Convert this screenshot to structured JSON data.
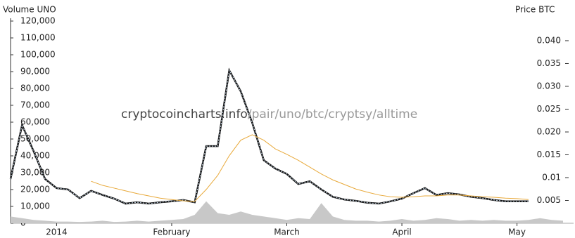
{
  "chart_data": {
    "type": "line",
    "y_label": "Volume UNO",
    "y2_label": "Price BTC",
    "watermark_site": "cryptocoincharts.info",
    "watermark_path": "/pair/uno/btc/cryptsy/alltime",
    "categories": [
      null,
      null,
      null,
      null,
      "2014",
      null,
      null,
      null,
      null,
      null,
      null,
      null,
      null,
      null,
      "February",
      null,
      null,
      null,
      null,
      null,
      null,
      null,
      null,
      null,
      "March",
      null,
      null,
      null,
      null,
      null,
      null,
      null,
      null,
      null,
      "April",
      null,
      null,
      null,
      null,
      null,
      null,
      null,
      null,
      null,
      "May",
      null,
      null,
      null,
      null
    ],
    "ylim": [
      0,
      120000
    ],
    "yticks": [
      0,
      {
        "value": 10000,
        "label": "10,000"
      },
      {
        "value": 20000,
        "label": "20,000"
      },
      {
        "value": 30000,
        "label": "30,000"
      },
      {
        "value": 40000,
        "label": "40,000"
      },
      {
        "value": 50000,
        "label": "50,000"
      },
      {
        "value": 60000,
        "label": "60,000"
      },
      {
        "value": 70000,
        "label": "70,000"
      },
      {
        "value": 80000,
        "label": "80,000"
      },
      {
        "value": 90000,
        "label": "90,000"
      },
      {
        "value": 100000,
        "label": "100,000"
      },
      {
        "value": 110000,
        "label": "110,000"
      },
      {
        "value": 120000,
        "label": "120,000"
      }
    ],
    "y2lim": [
      0,
      0.0443
    ],
    "y2ticks": [
      0.005,
      0.01,
      {
        "value": 0.015,
        "label": "0.015"
      },
      {
        "value": 0.02,
        "label": "0.020"
      },
      {
        "value": 0.025,
        "label": "0.025"
      },
      {
        "value": 0.03,
        "label": "0.030"
      },
      {
        "value": 0.035,
        "label": "0.035"
      },
      {
        "value": 0.04,
        "label": "0.040"
      }
    ],
    "series": [
      {
        "name": "Volume UNO",
        "kind": "area",
        "color": "#c8c8c8",
        "values": [
          4000,
          3000,
          2000,
          1500,
          1000,
          1000,
          800,
          1000,
          1500,
          800,
          1000,
          1500,
          1000,
          1500,
          2000,
          2500,
          5000,
          13000,
          6000,
          5000,
          7000,
          5000,
          4000,
          3000,
          2000,
          3000,
          2500,
          12000,
          4000,
          2000,
          1500,
          1500,
          1000,
          1500,
          2500,
          1500,
          2000,
          3000,
          2500,
          1500,
          2000,
          1500,
          2000,
          1500,
          1500,
          2000,
          3000,
          2000,
          1500
        ]
      },
      {
        "name": "Price BTC",
        "kind": "line",
        "axis": "y2",
        "color": "#111111",
        "values": [
          0.0097,
          0.0215,
          0.0158,
          0.0097,
          0.0077,
          0.0074,
          0.0055,
          0.0071,
          0.0062,
          0.0054,
          0.0043,
          0.0046,
          0.0043,
          0.0046,
          0.0048,
          0.0051,
          0.0046,
          0.0169,
          0.0169,
          0.0335,
          0.0289,
          0.022,
          0.0138,
          0.012,
          0.0108,
          0.0086,
          0.0092,
          0.0074,
          0.0058,
          0.0052,
          0.0049,
          0.0045,
          0.0043,
          0.0048,
          0.0054,
          0.0066,
          0.0077,
          0.0062,
          0.0066,
          0.0063,
          0.0058,
          0.0055,
          0.0051,
          0.0048,
          0.0048,
          0.0048,
          null,
          null,
          null
        ]
      },
      {
        "kind": "line",
        "axis": "y2",
        "color": "#e8a93a",
        "values": [
          null,
          null,
          null,
          null,
          null,
          null,
          null,
          0.0092,
          0.0083,
          0.0077,
          0.0071,
          0.0065,
          0.006,
          0.0055,
          0.0052,
          0.0049,
          0.0048,
          0.0074,
          0.0105,
          0.0148,
          0.0182,
          0.0194,
          0.0182,
          0.0163,
          0.0151,
          0.0138,
          0.0123,
          0.0108,
          0.0095,
          0.0085,
          0.0075,
          0.0068,
          0.0062,
          0.0058,
          0.0057,
          0.0058,
          0.006,
          0.006,
          0.0062,
          0.0062,
          0.006,
          0.0058,
          0.0057,
          0.0055,
          0.0054,
          0.0052,
          null,
          null,
          null
        ]
      }
    ]
  }
}
